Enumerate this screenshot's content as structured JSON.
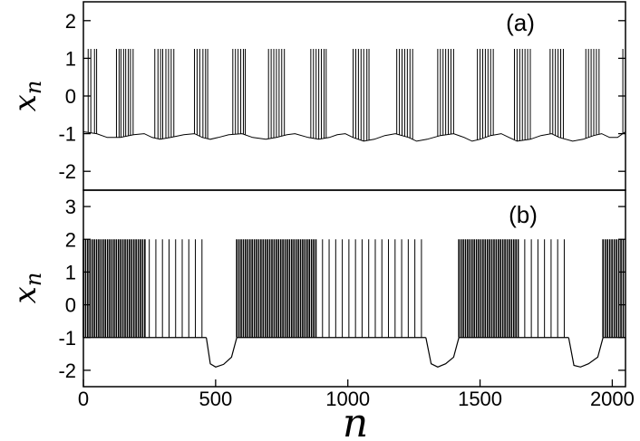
{
  "chart_data": [
    {
      "type": "line",
      "panel_label": "(a)",
      "ylabel": "x",
      "ylabel_sub": "n",
      "xlim": [
        0,
        2050
      ],
      "ylim": [
        -2.5,
        2.5
      ],
      "yticks": [
        -2,
        -1,
        0,
        1,
        2
      ],
      "grid": false,
      "baseline": {
        "x": [
          0,
          50,
          90,
          140,
          190,
          230,
          260,
          290,
          330,
          380,
          420,
          450,
          480,
          510,
          550,
          600,
          640,
          690,
          730,
          770,
          800,
          850,
          890,
          930,
          960,
          990,
          1020,
          1060,
          1100,
          1140,
          1180,
          1230,
          1260,
          1300,
          1350,
          1400,
          1440,
          1470,
          1500,
          1540,
          1580,
          1610,
          1640,
          1690,
          1730,
          1770,
          1800,
          1850,
          1890,
          1930,
          1960,
          1990,
          2020,
          2050
        ],
        "y": [
          -0.95,
          -1.0,
          -1.1,
          -1.1,
          -1.03,
          -1.0,
          -1.1,
          -1.15,
          -1.1,
          -1.03,
          -1.0,
          -1.1,
          -1.15,
          -1.1,
          -1.03,
          -1.0,
          -1.1,
          -1.15,
          -1.1,
          -1.03,
          -1.0,
          -1.1,
          -1.15,
          -1.1,
          -1.03,
          -1.0,
          -1.1,
          -1.2,
          -1.15,
          -1.05,
          -1.0,
          -1.1,
          -1.2,
          -1.15,
          -1.05,
          -1.0,
          -1.1,
          -1.2,
          -1.15,
          -1.05,
          -1.0,
          -1.1,
          -1.2,
          -1.15,
          -1.05,
          -1.0,
          -1.1,
          -1.2,
          -1.15,
          -1.05,
          -1.0,
          -1.1,
          -1.1,
          -0.95
        ]
      },
      "spike_peak": 1.25,
      "spikes_x": [
        18,
        28,
        42,
        50,
        125,
        135,
        142,
        152,
        160,
        170,
        178,
        188,
        270,
        282,
        292,
        300,
        312,
        322,
        332,
        342,
        420,
        430,
        440,
        452,
        462,
        470,
        565,
        575,
        585,
        595,
        605,
        612,
        700,
        710,
        720,
        730,
        740,
        750,
        760,
        860,
        870,
        880,
        890,
        900,
        910,
        918,
        1020,
        1030,
        1040,
        1050,
        1060,
        1072,
        1080,
        1185,
        1195,
        1205,
        1215,
        1225,
        1235,
        1245,
        1340,
        1350,
        1360,
        1370,
        1380,
        1390,
        1400,
        1490,
        1500,
        1510,
        1520,
        1530,
        1540,
        1550,
        1630,
        1640,
        1650,
        1660,
        1670,
        1680,
        1690,
        1765,
        1775,
        1785,
        1795,
        1805,
        1815,
        1900,
        1910,
        1920,
        1930,
        1940,
        1950,
        2040
      ]
    },
    {
      "type": "line",
      "panel_label": "(b)",
      "ylabel": "x",
      "ylabel_sub": "n",
      "xlabel": "n",
      "xlim": [
        0,
        2050
      ],
      "ylim": [
        -2.5,
        3.5
      ],
      "yticks": [
        -2,
        -1,
        0,
        1,
        2,
        3
      ],
      "xticks": [
        0,
        500,
        1000,
        1500,
        2000
      ],
      "grid": false,
      "bursts": [
        {
          "start": 0,
          "end": 465,
          "dense_until": 240
        },
        {
          "start": 580,
          "end": 1295,
          "dense_until": 880
        },
        {
          "start": 1420,
          "end": 1835,
          "dense_until": 1650
        },
        {
          "start": 1965,
          "end": 2050,
          "dense_until": 2050
        }
      ],
      "spike_peak": 2.0,
      "spike_floor": -1.0,
      "quiescent": [
        {
          "x": [
            465,
            480,
            500,
            530,
            560,
            580
          ],
          "y": [
            -1.0,
            -1.8,
            -1.9,
            -1.82,
            -1.6,
            -1.0
          ]
        },
        {
          "x": [
            1295,
            1315,
            1340,
            1370,
            1400,
            1420
          ],
          "y": [
            -1.0,
            -1.8,
            -1.9,
            -1.8,
            -1.6,
            -1.0
          ]
        },
        {
          "x": [
            1835,
            1855,
            1880,
            1910,
            1945,
            1965
          ],
          "y": [
            -1.0,
            -1.85,
            -1.9,
            -1.8,
            -1.6,
            -1.0
          ]
        }
      ]
    }
  ]
}
